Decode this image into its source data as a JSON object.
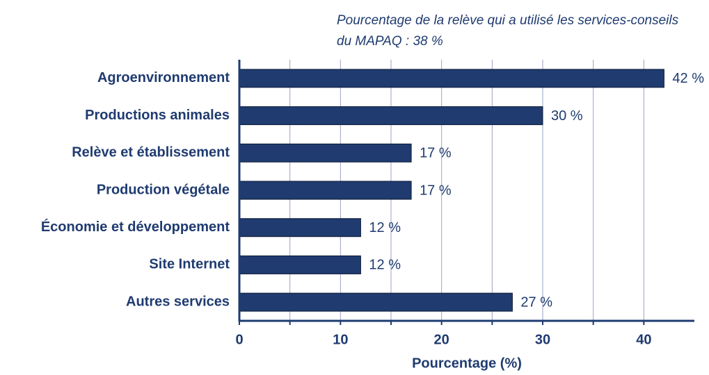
{
  "chart_data": {
    "type": "bar",
    "orientation": "horizontal",
    "subtitle": [
      "Pourcentage de la relève qui a utilisé les services-conseils",
      "du MAPAQ : 38 %"
    ],
    "categories": [
      "Agroenvironnement",
      "Productions animales",
      "Relève et établissement",
      "Production végétale",
      "Économie et développement",
      "Site Internet",
      "Autres services"
    ],
    "values": [
      42,
      30,
      17,
      17,
      12,
      12,
      27
    ],
    "value_labels": [
      "42 %",
      "30 %",
      "17 %",
      "17 %",
      "12 %",
      "12 %",
      "27 %"
    ],
    "color": "#1f3b70",
    "xlabel": "Pourcentage (%)",
    "xlim": [
      0,
      45
    ],
    "xticks": [
      0,
      10,
      20,
      30,
      40
    ],
    "xminor": [
      5,
      15,
      25,
      35
    ],
    "grid": true
  }
}
